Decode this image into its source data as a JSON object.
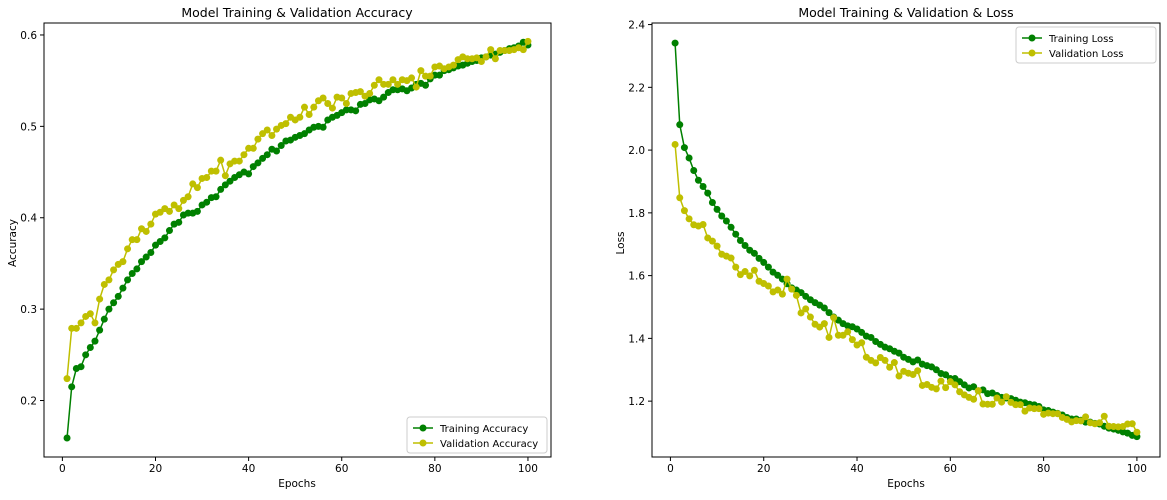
{
  "chart_data": [
    {
      "type": "line",
      "title": "Model Training & Validation Accuracy",
      "xlabel": "Epochs",
      "ylabel": "Accuracy",
      "xlim": [
        -3.95,
        104.95
      ],
      "ylim": [
        0.1382,
        0.6131
      ],
      "xticks": [
        0,
        20,
        40,
        60,
        80,
        100
      ],
      "yticks": [
        0.2,
        0.3,
        0.4,
        0.5,
        0.6
      ],
      "ytick_labels": [
        "0.2",
        "0.3",
        "0.4",
        "0.5",
        "0.6"
      ],
      "legend_position": "lower-right",
      "x": [
        1,
        2,
        3,
        4,
        5,
        6,
        7,
        8,
        9,
        10,
        11,
        12,
        13,
        14,
        15,
        16,
        17,
        18,
        19,
        20,
        21,
        22,
        23,
        24,
        25,
        26,
        27,
        28,
        29,
        30,
        31,
        32,
        33,
        34,
        35,
        36,
        37,
        38,
        39,
        40,
        41,
        42,
        43,
        44,
        45,
        46,
        47,
        48,
        49,
        50,
        51,
        52,
        53,
        54,
        55,
        56,
        57,
        58,
        59,
        60,
        61,
        62,
        63,
        64,
        65,
        66,
        67,
        68,
        69,
        70,
        71,
        72,
        73,
        74,
        75,
        76,
        77,
        78,
        79,
        80,
        81,
        82,
        83,
        84,
        85,
        86,
        87,
        88,
        89,
        90,
        91,
        92,
        93,
        94,
        95,
        96,
        97,
        98,
        99,
        100
      ],
      "series": [
        {
          "name": "Training Accuracy",
          "color": "#008000",
          "values": [
            0.159,
            0.215,
            0.235,
            0.237,
            0.25,
            0.258,
            0.265,
            0.277,
            0.289,
            0.3,
            0.307,
            0.314,
            0.323,
            0.332,
            0.339,
            0.344,
            0.352,
            0.357,
            0.362,
            0.37,
            0.374,
            0.378,
            0.386,
            0.393,
            0.395,
            0.403,
            0.405,
            0.405,
            0.407,
            0.414,
            0.417,
            0.422,
            0.423,
            0.431,
            0.436,
            0.44,
            0.444,
            0.447,
            0.45,
            0.448,
            0.456,
            0.46,
            0.465,
            0.469,
            0.475,
            0.473,
            0.479,
            0.484,
            0.485,
            0.488,
            0.49,
            0.492,
            0.496,
            0.499,
            0.5,
            0.499,
            0.507,
            0.51,
            0.512,
            0.515,
            0.518,
            0.518,
            0.517,
            0.524,
            0.525,
            0.529,
            0.53,
            0.528,
            0.532,
            0.537,
            0.54,
            0.54,
            0.541,
            0.539,
            0.542,
            0.546,
            0.547,
            0.545,
            0.552,
            0.556,
            0.556,
            0.561,
            0.562,
            0.564,
            0.566,
            0.567,
            0.569,
            0.571,
            0.572,
            0.575,
            0.576,
            0.578,
            0.579,
            0.581,
            0.583,
            0.585,
            0.586,
            0.588,
            0.592,
            0.589
          ]
        },
        {
          "name": "Validation Accuracy",
          "color": "#bfbf00",
          "values": [
            0.224,
            0.279,
            0.279,
            0.285,
            0.292,
            0.295,
            0.285,
            0.311,
            0.327,
            0.332,
            0.343,
            0.349,
            0.352,
            0.366,
            0.376,
            0.376,
            0.388,
            0.385,
            0.393,
            0.404,
            0.406,
            0.41,
            0.407,
            0.414,
            0.41,
            0.419,
            0.423,
            0.437,
            0.433,
            0.443,
            0.444,
            0.451,
            0.451,
            0.463,
            0.446,
            0.459,
            0.462,
            0.462,
            0.469,
            0.476,
            0.476,
            0.486,
            0.492,
            0.496,
            0.49,
            0.497,
            0.501,
            0.503,
            0.51,
            0.507,
            0.51,
            0.521,
            0.513,
            0.521,
            0.528,
            0.531,
            0.525,
            0.52,
            0.532,
            0.531,
            0.525,
            0.536,
            0.537,
            0.538,
            0.533,
            0.536,
            0.545,
            0.551,
            0.546,
            0.546,
            0.551,
            0.546,
            0.551,
            0.55,
            0.553,
            0.543,
            0.561,
            0.555,
            0.555,
            0.565,
            0.566,
            0.563,
            0.565,
            0.567,
            0.573,
            0.576,
            0.574,
            0.574,
            0.575,
            0.571,
            0.576,
            0.584,
            0.574,
            0.583,
            0.583,
            0.583,
            0.584,
            0.586,
            0.584,
            0.593
          ]
        }
      ]
    },
    {
      "type": "line",
      "title": "Model Training & Validation & Loss",
      "xlabel": "Epochs",
      "ylabel": "Loss",
      "xlim": [
        -3.95,
        104.95
      ],
      "ylim": [
        1.022,
        2.405
      ],
      "xticks": [
        0,
        20,
        40,
        60,
        80,
        100
      ],
      "yticks": [
        1.2,
        1.4,
        1.6,
        1.8,
        2.0,
        2.2,
        2.4
      ],
      "ytick_labels": [
        "1.2",
        "1.4",
        "1.6",
        "1.8",
        "2.0",
        "2.2",
        "2.4"
      ],
      "legend_position": "upper-right",
      "x": [
        1,
        2,
        3,
        4,
        5,
        6,
        7,
        8,
        9,
        10,
        11,
        12,
        13,
        14,
        15,
        16,
        17,
        18,
        19,
        20,
        21,
        22,
        23,
        24,
        25,
        26,
        27,
        28,
        29,
        30,
        31,
        32,
        33,
        34,
        35,
        36,
        37,
        38,
        39,
        40,
        41,
        42,
        43,
        44,
        45,
        46,
        47,
        48,
        49,
        50,
        51,
        52,
        53,
        54,
        55,
        56,
        57,
        58,
        59,
        60,
        61,
        62,
        63,
        64,
        65,
        66,
        67,
        68,
        69,
        70,
        71,
        72,
        73,
        74,
        75,
        76,
        77,
        78,
        79,
        80,
        81,
        82,
        83,
        84,
        85,
        86,
        87,
        88,
        89,
        90,
        91,
        92,
        93,
        94,
        95,
        96,
        97,
        98,
        99,
        100
      ],
      "series": [
        {
          "name": "Training Loss",
          "color": "#008000",
          "values": [
            2.341,
            2.081,
            2.008,
            1.975,
            1.935,
            1.904,
            1.884,
            1.863,
            1.833,
            1.811,
            1.79,
            1.774,
            1.754,
            1.732,
            1.712,
            1.696,
            1.681,
            1.671,
            1.655,
            1.642,
            1.627,
            1.611,
            1.601,
            1.589,
            1.574,
            1.561,
            1.554,
            1.546,
            1.534,
            1.523,
            1.514,
            1.506,
            1.497,
            1.482,
            1.468,
            1.458,
            1.447,
            1.44,
            1.437,
            1.43,
            1.419,
            1.407,
            1.403,
            1.39,
            1.381,
            1.372,
            1.367,
            1.359,
            1.353,
            1.34,
            1.333,
            1.325,
            1.331,
            1.318,
            1.313,
            1.309,
            1.3,
            1.288,
            1.284,
            1.272,
            1.272,
            1.262,
            1.252,
            1.242,
            1.246,
            1.233,
            1.236,
            1.224,
            1.226,
            1.218,
            1.212,
            1.21,
            1.208,
            1.203,
            1.197,
            1.195,
            1.19,
            1.188,
            1.183,
            1.172,
            1.17,
            1.165,
            1.161,
            1.156,
            1.148,
            1.143,
            1.143,
            1.139,
            1.133,
            1.133,
            1.129,
            1.127,
            1.12,
            1.114,
            1.111,
            1.107,
            1.102,
            1.098,
            1.091,
            1.087
          ]
        },
        {
          "name": "Validation Loss",
          "color": "#bfbf00",
          "values": [
            2.018,
            1.848,
            1.807,
            1.781,
            1.762,
            1.758,
            1.763,
            1.72,
            1.71,
            1.694,
            1.668,
            1.662,
            1.656,
            1.627,
            1.603,
            1.613,
            1.599,
            1.617,
            1.582,
            1.575,
            1.567,
            1.548,
            1.554,
            1.541,
            1.589,
            1.557,
            1.537,
            1.481,
            1.494,
            1.468,
            1.445,
            1.436,
            1.447,
            1.403,
            1.466,
            1.41,
            1.41,
            1.421,
            1.396,
            1.379,
            1.386,
            1.34,
            1.33,
            1.322,
            1.339,
            1.33,
            1.308,
            1.323,
            1.28,
            1.295,
            1.289,
            1.285,
            1.297,
            1.25,
            1.253,
            1.244,
            1.239,
            1.264,
            1.243,
            1.262,
            1.252,
            1.23,
            1.22,
            1.212,
            1.206,
            1.233,
            1.191,
            1.19,
            1.19,
            1.21,
            1.197,
            1.214,
            1.196,
            1.189,
            1.189,
            1.168,
            1.178,
            1.176,
            1.176,
            1.158,
            1.162,
            1.16,
            1.16,
            1.148,
            1.142,
            1.134,
            1.138,
            1.137,
            1.15,
            1.131,
            1.128,
            1.131,
            1.152,
            1.12,
            1.119,
            1.118,
            1.119,
            1.127,
            1.128,
            1.101
          ]
        }
      ]
    }
  ]
}
